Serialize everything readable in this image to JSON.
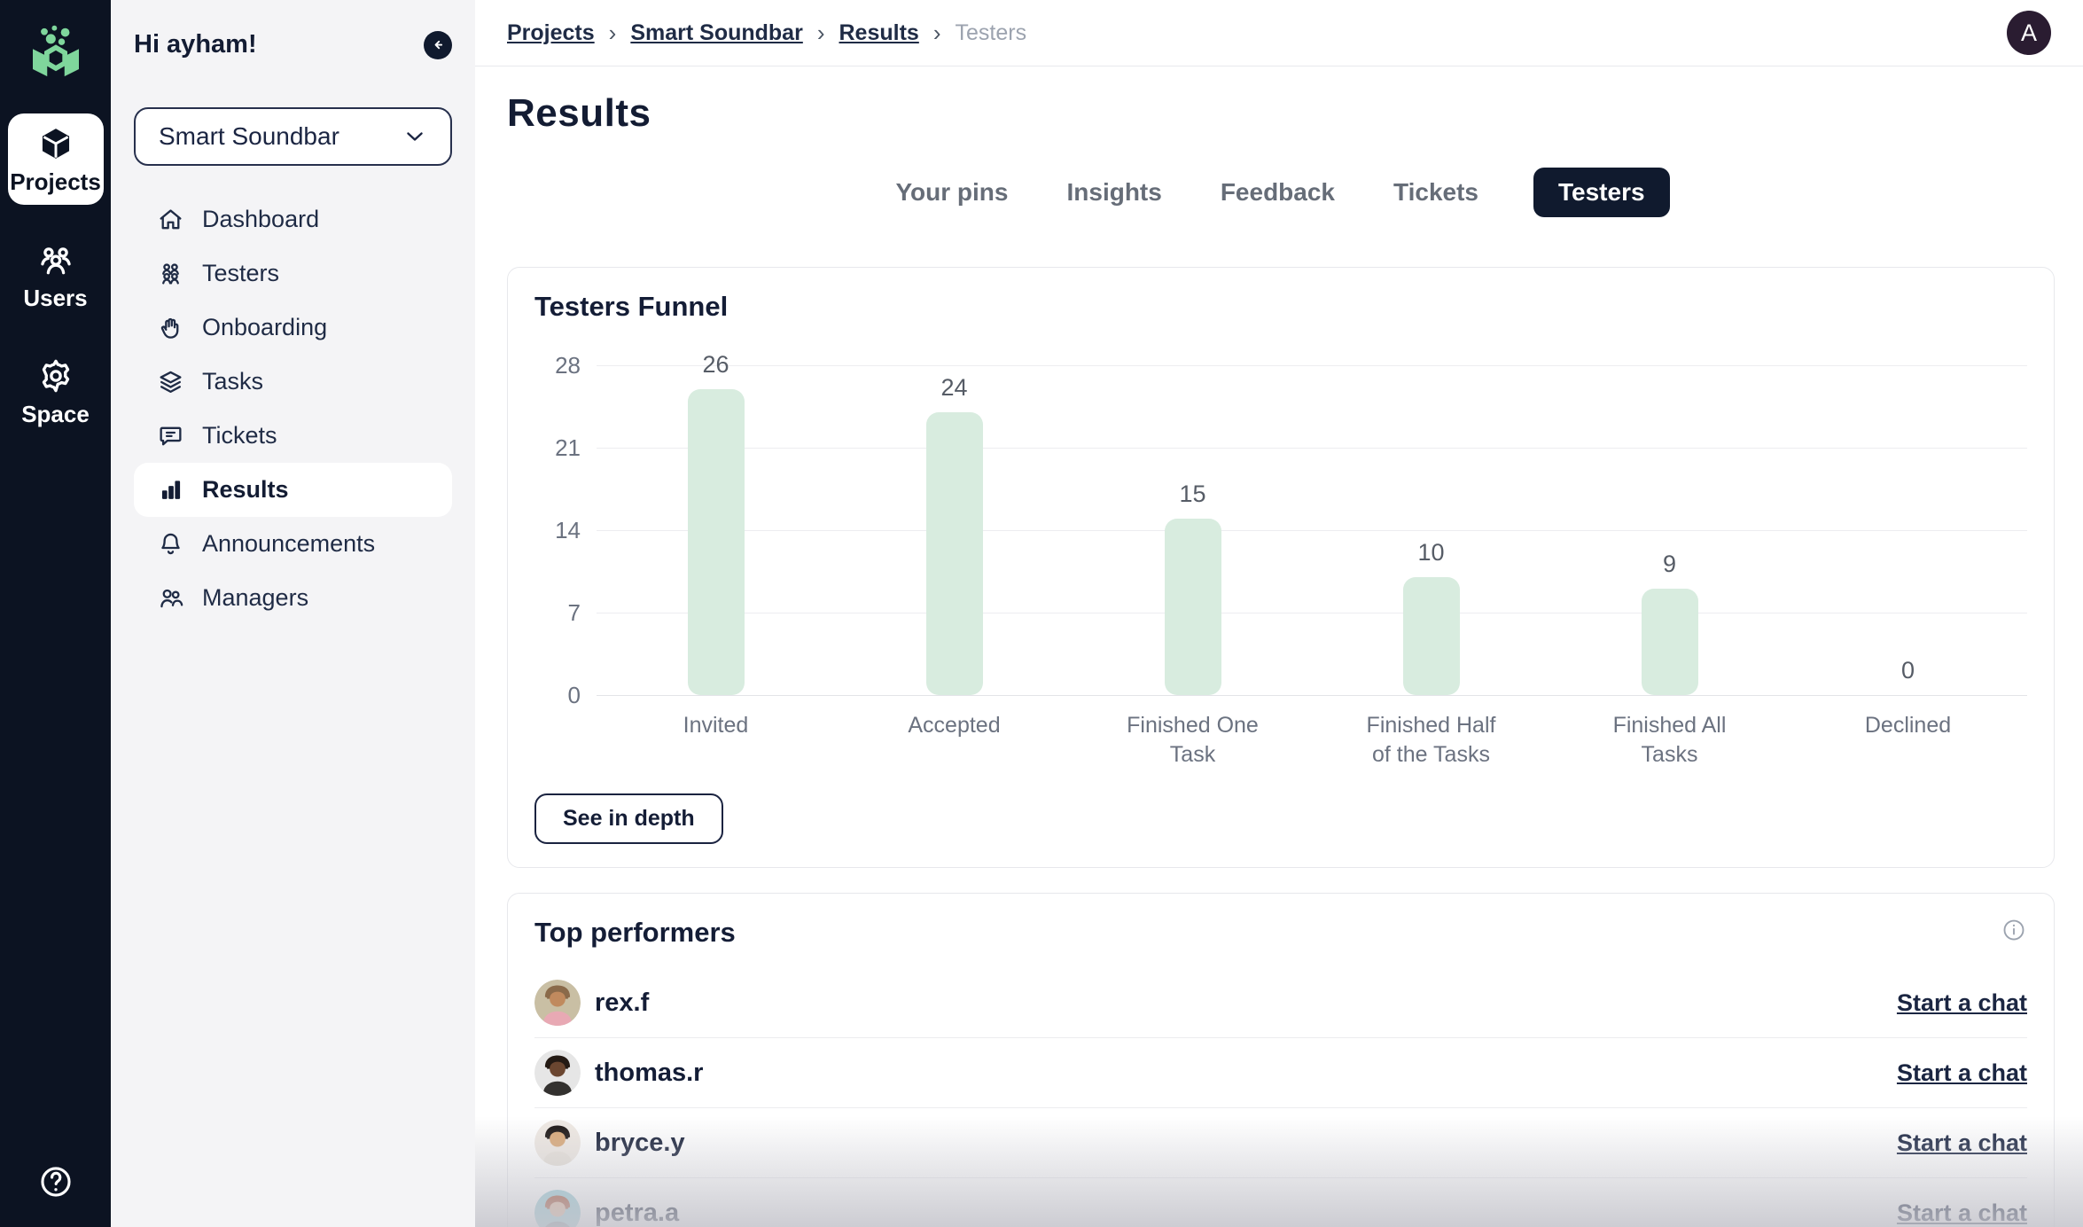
{
  "rail": {
    "items": [
      {
        "id": "projects",
        "label": "Projects",
        "icon": "cube-icon",
        "active": true
      },
      {
        "id": "users",
        "label": "Users",
        "icon": "users-group-icon",
        "active": false
      },
      {
        "id": "space",
        "label": "Space",
        "icon": "gear-icon",
        "active": false
      }
    ]
  },
  "sidebar": {
    "greeting": "Hi ayham!",
    "project_selector": {
      "value": "Smart Soundbar"
    },
    "items": [
      {
        "label": "Dashboard",
        "icon": "home-icon",
        "active": false
      },
      {
        "label": "Testers",
        "icon": "testers-icon",
        "active": false
      },
      {
        "label": "Onboarding",
        "icon": "wave-icon",
        "active": false
      },
      {
        "label": "Tasks",
        "icon": "layers-icon",
        "active": false
      },
      {
        "label": "Tickets",
        "icon": "ticket-icon",
        "active": false
      },
      {
        "label": "Results",
        "icon": "chart-icon",
        "active": true
      },
      {
        "label": "Announcements",
        "icon": "bell-icon",
        "active": false
      },
      {
        "label": "Managers",
        "icon": "managers-icon",
        "active": false
      }
    ]
  },
  "header": {
    "breadcrumb": [
      {
        "label": "Projects",
        "current": false
      },
      {
        "label": "Smart Soundbar",
        "current": false
      },
      {
        "label": "Results",
        "current": false
      },
      {
        "label": "Testers",
        "current": true
      }
    ],
    "avatar_initial": "A"
  },
  "page": {
    "title": "Results"
  },
  "tabs": [
    {
      "label": "Your pins",
      "active": false
    },
    {
      "label": "Insights",
      "active": false
    },
    {
      "label": "Feedback",
      "active": false
    },
    {
      "label": "Tickets",
      "active": false
    },
    {
      "label": "Testers",
      "active": true
    }
  ],
  "funnel_card": {
    "title": "Testers Funnel",
    "see_in_depth_label": "See in depth"
  },
  "chart_data": {
    "type": "bar",
    "title": "Testers Funnel",
    "categories": [
      "Invited",
      "Accepted",
      "Finished One\nTask",
      "Finished Half\nof the Tasks",
      "Finished All\nTasks",
      "Declined"
    ],
    "values": [
      26,
      24,
      15,
      10,
      9,
      0
    ],
    "yticks": [
      0,
      7,
      14,
      21,
      28
    ],
    "ylim": [
      0,
      28
    ],
    "bar_color": "#d8ecdf",
    "grid": true,
    "value_labels": true,
    "legend": false
  },
  "performers": {
    "title": "Top performers",
    "rows": [
      {
        "name": "rex.f",
        "chat_label": "Start a chat",
        "avatar": {
          "bg": "#c9bfa4",
          "skin": "#c08a5e",
          "hair": "#8a6a4a",
          "shirt": "#e8a9b4"
        }
      },
      {
        "name": "thomas.r",
        "chat_label": "Start a chat",
        "avatar": {
          "bg": "#e6e6e6",
          "skin": "#6b4630",
          "hair": "#241a14",
          "shirt": "#33312f"
        }
      },
      {
        "name": "bryce.y",
        "chat_label": "Start a chat",
        "avatar": {
          "bg": "#efe9e3",
          "skin": "#d9a877",
          "hair": "#181210",
          "shirt": "#e8e2da"
        }
      },
      {
        "name": "petra.a",
        "chat_label": "Start a chat",
        "avatar": {
          "bg": "#97ccd6",
          "skin": "#e3b497",
          "hair": "#a24b2f",
          "shirt": "#7a8a94"
        }
      }
    ]
  },
  "colors": {
    "rail_bg": "#0c1322",
    "active_pill": "#101a2e",
    "bar_green": "#d8ecdf",
    "logo_green": "#7fd69c",
    "avatar_bg": "#2a1c31"
  }
}
